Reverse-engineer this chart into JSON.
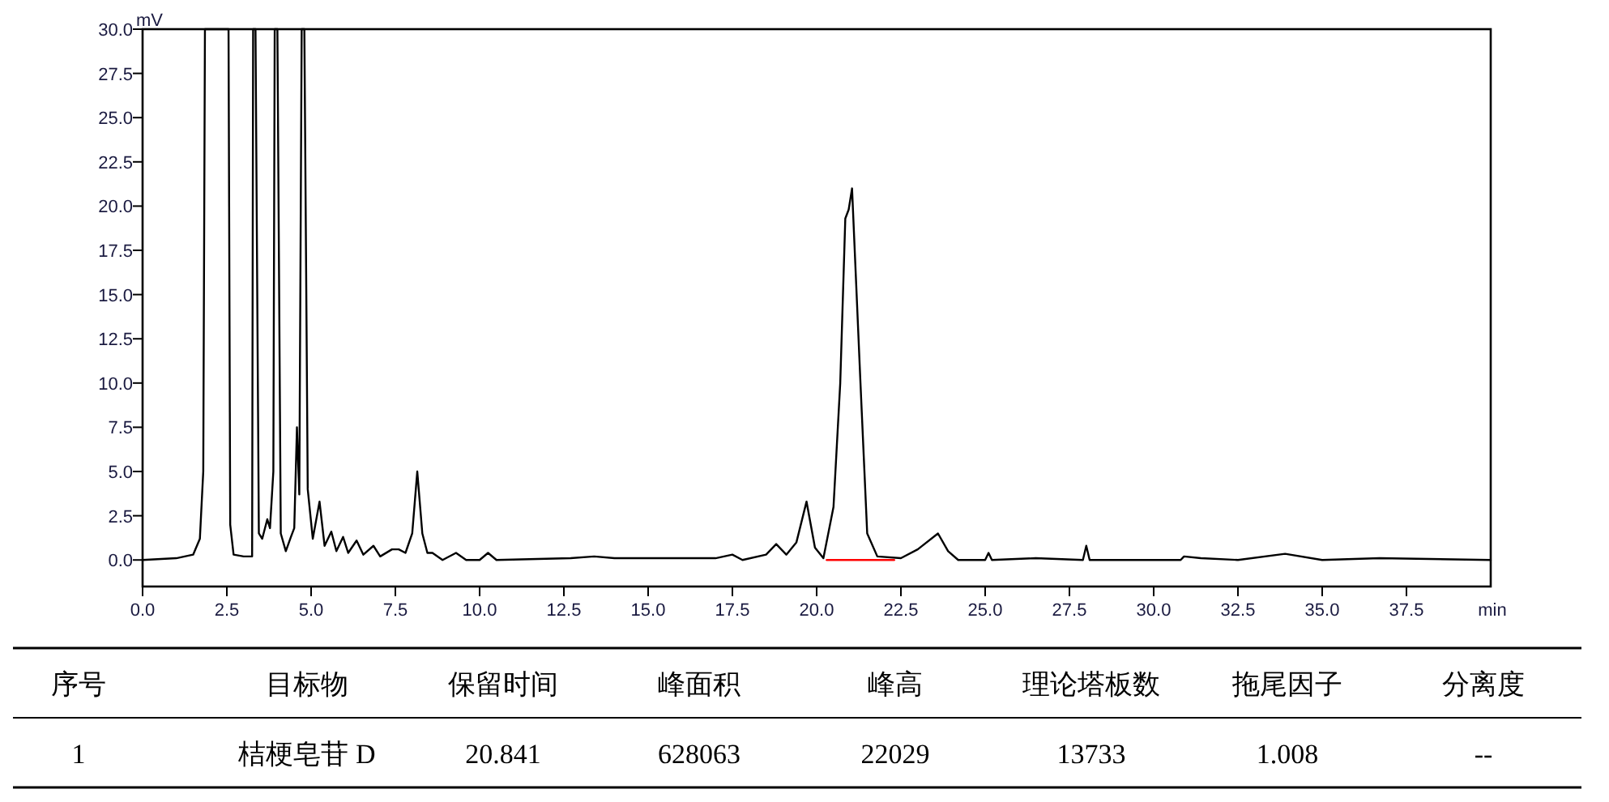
{
  "chart_data": {
    "type": "line",
    "xlabel": "min",
    "ylabel": "mV",
    "xlim": [
      0,
      40
    ],
    "ylim": [
      -1.5,
      30
    ],
    "xticks": [
      {
        "value": 0,
        "label": "0.0"
      },
      {
        "value": 2.5,
        "label": "2.5"
      },
      {
        "value": 5,
        "label": "5.0"
      },
      {
        "value": 7.5,
        "label": "7.5"
      },
      {
        "value": 10,
        "label": "10.0"
      },
      {
        "value": 12.5,
        "label": "12.5"
      },
      {
        "value": 15,
        "label": "15.0"
      },
      {
        "value": 17.5,
        "label": "17.5"
      },
      {
        "value": 20,
        "label": "20.0"
      },
      {
        "value": 22.5,
        "label": "22.5"
      },
      {
        "value": 25,
        "label": "25.0"
      },
      {
        "value": 27.5,
        "label": "27.5"
      },
      {
        "value": 30,
        "label": "30.0"
      },
      {
        "value": 32.5,
        "label": "32.5"
      },
      {
        "value": 35,
        "label": "35.0"
      },
      {
        "value": 37.5,
        "label": "37.5"
      }
    ],
    "yticks": [
      {
        "value": 0,
        "label": "0.0"
      },
      {
        "value": 2.5,
        "label": "2.5"
      },
      {
        "value": 5,
        "label": "5.0"
      },
      {
        "value": 7.5,
        "label": "7.5"
      },
      {
        "value": 10,
        "label": "10.0"
      },
      {
        "value": 12.5,
        "label": "12.5"
      },
      {
        "value": 15,
        "label": "15.0"
      },
      {
        "value": 17.5,
        "label": "17.5"
      },
      {
        "value": 20,
        "label": "20.0"
      },
      {
        "value": 22.5,
        "label": "22.5"
      },
      {
        "value": 25,
        "label": "25.0"
      },
      {
        "value": 27.5,
        "label": "27.5"
      },
      {
        "value": 30,
        "label": "30.0"
      }
    ],
    "grid": false,
    "series": [
      {
        "color": "#000000",
        "x": [
          0,
          1.0,
          1.5,
          1.7,
          1.8,
          1.85,
          2.55,
          2.6,
          2.7,
          3.0,
          3.25,
          3.28,
          3.35,
          3.45,
          3.55,
          3.7,
          3.78,
          3.88,
          3.92,
          4.0,
          4.1,
          4.25,
          4.4,
          4.5,
          4.58,
          4.65,
          4.72,
          4.8,
          4.9,
          5.05,
          5.25,
          5.4,
          5.6,
          5.75,
          5.95,
          6.1,
          6.35,
          6.55,
          6.85,
          7.05,
          7.4,
          7.6,
          7.8,
          8.0,
          8.15,
          8.3,
          8.45,
          8.6,
          8.9,
          9.3,
          9.6,
          10.0,
          10.25,
          10.5,
          12.7,
          13.4,
          14.0,
          17.0,
          17.5,
          17.8,
          18.5,
          18.8,
          19.1,
          19.4,
          19.7,
          19.95,
          20.2,
          20.5,
          20.7,
          20.85,
          20.95,
          21.05,
          21.3,
          21.5,
          21.8,
          22.5,
          23.0,
          23.6,
          23.9,
          24.2,
          25.0,
          25.1,
          25.2,
          26.5,
          27.9,
          28.0,
          28.1,
          30.8,
          30.9,
          31.4,
          32.5,
          33.9,
          35.0,
          36.7,
          40
        ],
        "values": [
          0,
          0.1,
          0.3,
          1.2,
          5,
          30,
          30,
          2,
          0.3,
          0.2,
          0.2,
          30,
          30,
          1.5,
          1.2,
          2.3,
          1.8,
          5,
          30,
          30,
          1.5,
          0.5,
          1.3,
          1.8,
          7.5,
          3.7,
          30,
          30,
          4,
          1.2,
          3.3,
          0.8,
          1.6,
          0.5,
          1.3,
          0.4,
          1.1,
          0.3,
          0.8,
          0.2,
          0.6,
          0.6,
          0.4,
          1.5,
          5.0,
          1.5,
          0.4,
          0.4,
          0,
          0.4,
          0,
          0,
          0.4,
          0,
          0.1,
          0.2,
          0.1,
          0.1,
          0.3,
          0,
          0.3,
          0.9,
          0.3,
          1.0,
          3.3,
          0.7,
          0.1,
          3,
          10,
          19.3,
          19.8,
          21.0,
          10,
          1.5,
          0.2,
          0.1,
          0.6,
          1.5,
          0.5,
          0,
          0,
          0.4,
          0,
          0.1,
          0,
          0.8,
          0,
          0,
          0.2,
          0.1,
          0,
          0.35,
          0,
          0.1,
          0
        ]
      },
      {
        "color": "#ff0000",
        "x": [
          20.3,
          22.3
        ],
        "values": [
          0,
          0
        ]
      }
    ],
    "annotations": [
      "序号",
      "目标物",
      "保留时间",
      "峰面积",
      "峰高",
      "理论塔板数",
      "拖尾因子",
      "分离度",
      "1",
      "桔梗皂苷 D",
      "20.841",
      "628063",
      "22029",
      "13733",
      "1.008",
      "--"
    ]
  }
}
